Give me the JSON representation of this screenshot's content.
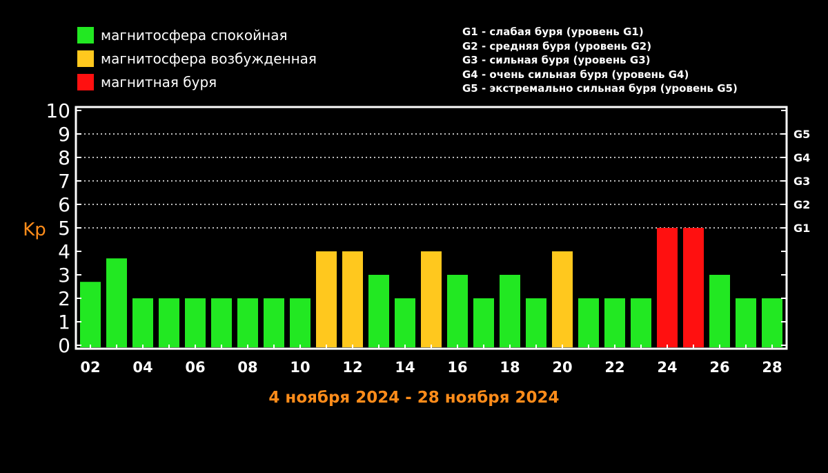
{
  "legend": {
    "items": [
      {
        "label": "магнитосфера спокойная",
        "color": "#22e822"
      },
      {
        "label": "магнитосфера возбужденная",
        "color": "#ffc81e"
      },
      {
        "label": "магнитная буря",
        "color": "#ff1010"
      }
    ]
  },
  "storm_levels": [
    "G1 - слабая буря (уровень G1)",
    "G2 - средняя буря (уровень G2)",
    "G3 - сильная буря (уровень G3)",
    "G4 - очень сильная буря (уровень G4)",
    "G5 - экстремально сильная буря (уровень G5)"
  ],
  "colors": {
    "quiet": "#22e822",
    "active": "#ffc81e",
    "storm": "#ff1010",
    "axis": "#ffffff",
    "accent": "#ff8c1a"
  },
  "chart_data": {
    "type": "bar",
    "title": "4 ноября 2024 - 28 ноября 2024",
    "ylabel": "Kp",
    "xlabel": "",
    "ylim": [
      0,
      10
    ],
    "yticks": [
      0,
      1,
      2,
      3,
      4,
      5,
      6,
      7,
      8,
      9,
      10
    ],
    "right_axis_labels": [
      {
        "value": 5,
        "label": "G1"
      },
      {
        "value": 6,
        "label": "G2"
      },
      {
        "value": 7,
        "label": "G3"
      },
      {
        "value": 8,
        "label": "G4"
      },
      {
        "value": 9,
        "label": "G5"
      }
    ],
    "grid": "dotted horizontal lines at 5, 6, 7, 8, 9",
    "xtick_labels": [
      "02",
      "04",
      "06",
      "08",
      "10",
      "12",
      "14",
      "16",
      "18",
      "20",
      "22",
      "24",
      "26",
      "28"
    ],
    "categories": [
      "02",
      "03",
      "04",
      "05",
      "06",
      "07",
      "08",
      "09",
      "10",
      "11",
      "12",
      "13",
      "14",
      "15",
      "16",
      "17",
      "18",
      "19",
      "20",
      "21",
      "22",
      "23",
      "24",
      "25",
      "26",
      "27",
      "28"
    ],
    "values": [
      2.7,
      3.7,
      2,
      2,
      2,
      2,
      2,
      2,
      2,
      4,
      4,
      3,
      2,
      4,
      3,
      2,
      3,
      2,
      4,
      2,
      2,
      2,
      5,
      5,
      3,
      2,
      2
    ],
    "levels": [
      "quiet",
      "quiet",
      "quiet",
      "quiet",
      "quiet",
      "quiet",
      "quiet",
      "quiet",
      "quiet",
      "active",
      "active",
      "quiet",
      "quiet",
      "active",
      "quiet",
      "quiet",
      "quiet",
      "quiet",
      "active",
      "quiet",
      "quiet",
      "quiet",
      "storm",
      "storm",
      "quiet",
      "quiet",
      "quiet"
    ]
  }
}
